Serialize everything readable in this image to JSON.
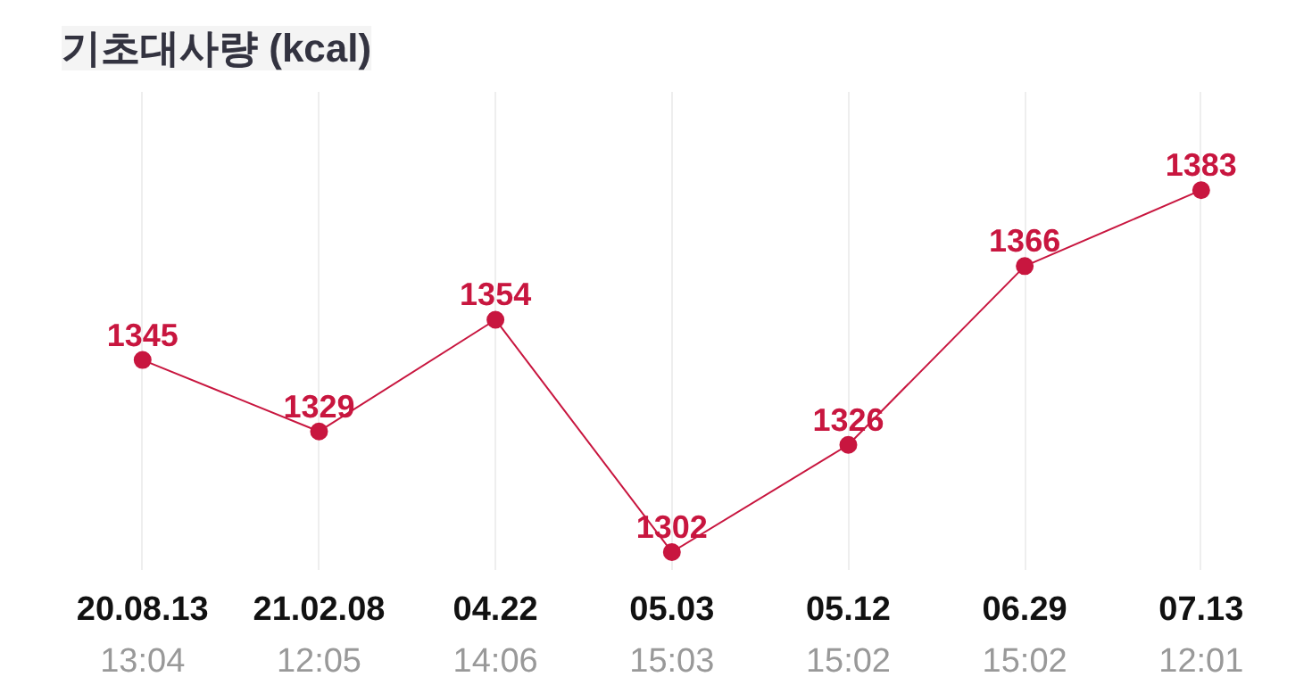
{
  "chart_data": {
    "type": "line",
    "title": "기초대사량 (kcal)",
    "categories": [
      "20.08.13\n13:04",
      "21.02.08\n12:05",
      "04.22\n14:06",
      "05.03\n15:03",
      "05.12\n15:02",
      "06.29\n15:02",
      "07.13\n12:01"
    ],
    "series": [
      {
        "color": "#c8163f",
        "values": [
          1345,
          1329,
          1354,
          1302,
          1326,
          1366,
          1383
        ]
      }
    ],
    "ylim": [
      1298,
      1405
    ],
    "data_labels": true,
    "grid": "x",
    "marker": "circle",
    "tick_labels": "x"
  }
}
